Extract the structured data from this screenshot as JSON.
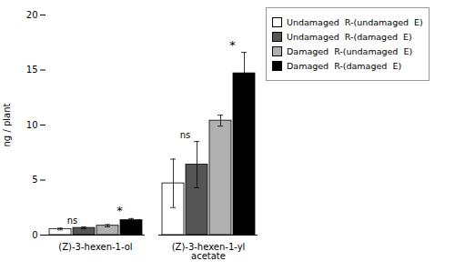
{
  "chart_data": {
    "type": "bar",
    "categories": [
      "(Z)-3-hexen-1-ol",
      "(Z)-3-hexen-1-yl\nacetate"
    ],
    "series": [
      {
        "name": "Undamaged  R-(undamaged  E)",
        "color": "#ffffff",
        "values": [
          0.55,
          4.7
        ],
        "errors": [
          0.08,
          2.2
        ]
      },
      {
        "name": "Undamaged  R-(damaged  E)",
        "color": "#555555",
        "values": [
          0.65,
          6.4
        ],
        "errors": [
          0.08,
          2.1
        ]
      },
      {
        "name": "Damaged  R-(undamaged  E)",
        "color": "#b0b0b0",
        "values": [
          0.85,
          10.4
        ],
        "errors": [
          0.1,
          0.5
        ]
      },
      {
        "name": "Damaged  R-(damaged  E)",
        "color": "#000000",
        "values": [
          1.35,
          14.7
        ],
        "errors": [
          0.15,
          1.9
        ]
      }
    ],
    "ylabel": "ng / plant",
    "ylim": [
      0,
      20
    ],
    "yticks": [
      0,
      5,
      10,
      15,
      20
    ],
    "grid": false,
    "legend": "right",
    "annotations": [
      {
        "text": "ns",
        "category": "(Z)-3-hexen-1-ol",
        "series": [
          "Undamaged  R-(undamaged  E)",
          "Undamaged  R-(damaged  E)"
        ]
      },
      {
        "text": "*",
        "category": "(Z)-3-hexen-1-ol",
        "series": [
          "Damaged  R-(undamaged  E)",
          "Damaged  R-(damaged  E)"
        ]
      },
      {
        "text": "ns",
        "category": "(Z)-3-hexen-1-yl\nacetate",
        "series": [
          "Undamaged  R-(undamaged  E)",
          "Undamaged  R-(damaged  E)"
        ]
      },
      {
        "text": "*",
        "category": "(Z)-3-hexen-1-yl\nacetate",
        "series": [
          "Damaged  R-(undamaged  E)",
          "Damaged  R-(damaged  E)"
        ]
      }
    ]
  }
}
